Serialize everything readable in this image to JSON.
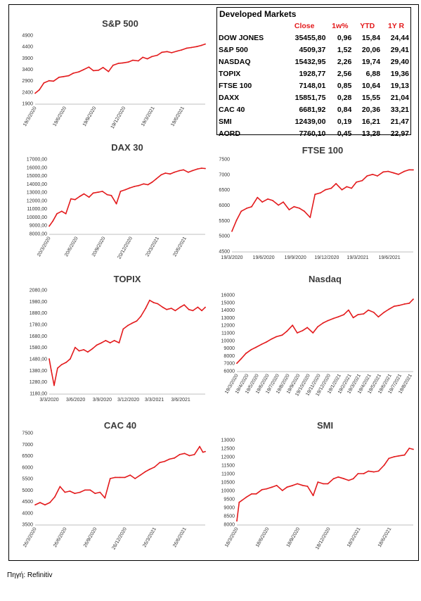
{
  "market_table": {
    "title": "Developed Markets",
    "headers": [
      "Close",
      "1w%",
      "YTD",
      "1Y R"
    ],
    "header_color": "#e31a1c",
    "rows": [
      {
        "name": "DOW JONES",
        "close": "35455,80",
        "w1": "0,96",
        "ytd": "15,84",
        "y1": "24,44"
      },
      {
        "name": "S&P 500",
        "close": "4509,37",
        "w1": "1,52",
        "ytd": "20,06",
        "y1": "29,41"
      },
      {
        "name": "NASDAQ",
        "close": "15432,95",
        "w1": "2,26",
        "ytd": "19,74",
        "y1": "29,40"
      },
      {
        "name": "TOPIX",
        "close": "1928,77",
        "w1": "2,56",
        "ytd": "6,88",
        "y1": "19,36"
      },
      {
        "name": "FTSE 100",
        "close": "7148,01",
        "w1": "0,85",
        "ytd": "10,64",
        "y1": "19,13"
      },
      {
        "name": "DAXX",
        "close": "15851,75",
        "w1": "0,28",
        "ytd": "15,55",
        "y1": "21,04"
      },
      {
        "name": "CAC 40",
        "close": "6681,92",
        "w1": "0,84",
        "ytd": "20,36",
        "y1": "33,21"
      },
      {
        "name": "SMI",
        "close": "12439,00",
        "w1": "0,19",
        "ytd": "16,21",
        "y1": "21,47"
      },
      {
        "name": "AORD",
        "close": "7760,10",
        "w1": "0,45",
        "ytd": "13,28",
        "y1": "22,97"
      }
    ]
  },
  "source_note": "Πηγή: Refinitiv",
  "line_color": "#e31a1c",
  "chart_data": [
    {
      "type": "line",
      "title": "S&P 500",
      "ylim": [
        1900,
        4900
      ],
      "yticks": [
        "1900",
        "2400",
        "2900",
        "3400",
        "3900",
        "4400",
        "4900"
      ],
      "xticks": [
        "19/3/2020",
        "19/6/2020",
        "19/9/2020",
        "19/12/2020",
        "19/3/2021",
        "19/6/2021"
      ],
      "x": [
        "19/3/2020",
        "1/4/2020",
        "15/4/2020",
        "1/5/2020",
        "15/5/2020",
        "1/6/2020",
        "15/6/2020",
        "1/7/2020",
        "15/7/2020",
        "1/8/2020",
        "15/8/2020",
        "1/9/2020",
        "15/9/2020",
        "1/10/2020",
        "15/10/2020",
        "1/11/2020",
        "15/11/2020",
        "1/12/2020",
        "15/12/2020",
        "1/1/2021",
        "15/1/2021",
        "1/2/2021",
        "15/2/2021",
        "1/3/2021",
        "15/3/2021",
        "1/4/2021",
        "15/4/2021",
        "1/5/2021",
        "15/5/2021",
        "1/6/2021",
        "15/6/2021",
        "1/7/2021",
        "15/7/2021",
        "1/8/2021",
        "15/8/2021",
        "27/8/2021"
      ],
      "values": [
        2350,
        2500,
        2800,
        2900,
        2880,
        3050,
        3080,
        3120,
        3230,
        3290,
        3380,
        3500,
        3340,
        3360,
        3480,
        3300,
        3580,
        3660,
        3680,
        3720,
        3800,
        3770,
        3930,
        3860,
        3960,
        4020,
        4150,
        4180,
        4130,
        4200,
        4250,
        4330,
        4360,
        4400,
        4450,
        4509
      ]
    },
    {
      "type": "line",
      "title": "DAX 30",
      "ylim": [
        8000,
        17000
      ],
      "yticks": [
        "8000,00",
        "9000,00",
        "10000,00",
        "11000,00",
        "12000,00",
        "13000,00",
        "14000,00",
        "15000,00",
        "16000,00",
        "17000,00"
      ],
      "xticks": [
        "20/3/2020",
        "20/6/2020",
        "20/9/2020",
        "20/12/2020",
        "20/3/2021",
        "20/6/2021"
      ],
      "x": [
        "20/3/2020",
        "1/4/2020",
        "15/4/2020",
        "1/5/2020",
        "15/5/2020",
        "1/6/2020",
        "15/6/2020",
        "1/7/2020",
        "15/7/2020",
        "1/8/2020",
        "15/8/2020",
        "1/9/2020",
        "15/9/2020",
        "1/10/2020",
        "15/10/2020",
        "1/11/2020",
        "15/11/2020",
        "1/12/2020",
        "15/12/2020",
        "1/1/2021",
        "15/1/2021",
        "1/2/2021",
        "15/2/2021",
        "1/3/2021",
        "15/3/2021",
        "1/4/2021",
        "15/4/2021",
        "1/5/2021",
        "15/5/2021",
        "1/6/2021",
        "15/6/2021",
        "1/7/2021",
        "15/7/2021",
        "1/8/2021",
        "15/8/2021",
        "27/8/2021"
      ],
      "values": [
        8900,
        9500,
        10400,
        10700,
        10400,
        12200,
        12100,
        12500,
        12800,
        12400,
        12900,
        13000,
        13100,
        12700,
        12600,
        11600,
        13100,
        13300,
        13500,
        13700,
        13800,
        14000,
        13900,
        14200,
        14600,
        15100,
        15300,
        15200,
        15400,
        15600,
        15700,
        15400,
        15600,
        15800,
        15900,
        15851
      ]
    },
    {
      "type": "line",
      "title": "FTSE 100",
      "ylim": [
        4500,
        7500
      ],
      "yticks": [
        "4500",
        "5000",
        "5500",
        "6000",
        "6500",
        "7000",
        "7500"
      ],
      "xticks": [
        "19/3/2020",
        "19/6/2020",
        "19/9/2020",
        "19/12/2020",
        "19/3/2021",
        "19/6/2021"
      ],
      "x": [
        "19/3/2020",
        "1/4/2020",
        "15/4/2020",
        "1/5/2020",
        "15/5/2020",
        "1/6/2020",
        "15/6/2020",
        "1/7/2020",
        "15/7/2020",
        "1/8/2020",
        "15/8/2020",
        "1/9/2020",
        "15/9/2020",
        "1/10/2020",
        "15/10/2020",
        "1/11/2020",
        "15/11/2020",
        "1/12/2020",
        "15/12/2020",
        "1/1/2021",
        "15/1/2021",
        "1/2/2021",
        "15/2/2021",
        "1/3/2021",
        "15/3/2021",
        "1/4/2021",
        "15/4/2021",
        "1/5/2021",
        "15/5/2021",
        "1/6/2021",
        "15/6/2021",
        "1/7/2021",
        "15/7/2021",
        "1/8/2021",
        "15/8/2021",
        "27/8/2021"
      ],
      "values": [
        5150,
        5500,
        5800,
        5900,
        5950,
        6250,
        6100,
        6200,
        6150,
        6000,
        6100,
        5850,
        5950,
        5900,
        5800,
        5600,
        6350,
        6400,
        6500,
        6550,
        6700,
        6500,
        6600,
        6550,
        6750,
        6800,
        6950,
        7000,
        6950,
        7080,
        7100,
        7050,
        7000,
        7100,
        7150,
        7148
      ]
    },
    {
      "type": "line",
      "title": "TOPIX",
      "ylim": [
        1180,
        2080
      ],
      "yticks": [
        "1180,00",
        "1280,00",
        "1380,00",
        "1480,00",
        "1580,00",
        "1680,00",
        "1780,00",
        "1880,00",
        "1980,00",
        "2080,00"
      ],
      "xticks": [
        "3/3/2020",
        "3/6/2020",
        "3/9/2020",
        "3/12/2020",
        "3/3/2021",
        "3/6/2021"
      ],
      "x": [
        "3/3/2020",
        "10/3/2020",
        "20/3/2020",
        "1/4/2020",
        "15/4/2020",
        "1/5/2020",
        "15/5/2020",
        "1/6/2020",
        "15/6/2020",
        "1/7/2020",
        "15/7/2020",
        "1/8/2020",
        "15/8/2020",
        "1/9/2020",
        "15/9/2020",
        "1/10/2020",
        "15/10/2020",
        "1/11/2020",
        "15/11/2020",
        "1/12/2020",
        "15/12/2020",
        "1/1/2021",
        "15/1/2021",
        "1/2/2021",
        "15/2/2021",
        "1/3/2021",
        "15/3/2021",
        "1/4/2021",
        "15/4/2021",
        "1/5/2021",
        "15/5/2021",
        "1/6/2021",
        "15/6/2021",
        "1/7/2021",
        "15/7/2021",
        "1/8/2021",
        "15/8/2021",
        "27/8/2021"
      ],
      "values": [
        1480,
        1380,
        1250,
        1400,
        1430,
        1450,
        1480,
        1580,
        1550,
        1560,
        1540,
        1570,
        1600,
        1620,
        1640,
        1620,
        1640,
        1620,
        1740,
        1770,
        1790,
        1810,
        1850,
        1920,
        1990,
        1970,
        1960,
        1930,
        1910,
        1920,
        1900,
        1930,
        1950,
        1910,
        1900,
        1930,
        1900,
        1929
      ]
    },
    {
      "type": "line",
      "title": "Nasdaq",
      "ylim": [
        6000,
        16000
      ],
      "yticks": [
        "6000",
        "7000",
        "8000",
        "9000",
        "10000",
        "11000",
        "12000",
        "13000",
        "14000",
        "15000",
        "16000"
      ],
      "xticks": [
        "19/3/2020",
        "19/4/2020",
        "19/5/2020",
        "19/6/2020",
        "19/7/2020",
        "19/8/2020",
        "19/9/2020",
        "19/10/2020",
        "19/11/2020",
        "19/12/2020",
        "19/1/2021",
        "19/2/2021",
        "19/3/2021",
        "19/4/2021",
        "19/5/2021",
        "19/6/2021",
        "19/7/2021",
        "19/8/2021"
      ],
      "x": [
        "19/3/2020",
        "1/4/2020",
        "15/4/2020",
        "1/5/2020",
        "15/5/2020",
        "1/6/2020",
        "15/6/2020",
        "1/7/2020",
        "15/7/2020",
        "1/8/2020",
        "15/8/2020",
        "1/9/2020",
        "15/9/2020",
        "1/10/2020",
        "15/10/2020",
        "1/11/2020",
        "15/11/2020",
        "1/12/2020",
        "15/12/2020",
        "1/1/2021",
        "15/1/2021",
        "1/2/2021",
        "15/2/2021",
        "1/3/2021",
        "15/3/2021",
        "1/4/2021",
        "15/4/2021",
        "1/5/2021",
        "15/5/2021",
        "1/6/2021",
        "15/6/2021",
        "1/7/2021",
        "15/7/2021",
        "1/8/2021",
        "15/8/2021",
        "27/8/2021"
      ],
      "values": [
        7000,
        7600,
        8300,
        8800,
        9100,
        9500,
        9800,
        10200,
        10500,
        10700,
        11200,
        12000,
        11000,
        11300,
        11700,
        11000,
        11800,
        12300,
        12600,
        12900,
        13100,
        13400,
        14000,
        13000,
        13400,
        13500,
        14000,
        13700,
        13100,
        13700,
        14100,
        14500,
        14600,
        14800,
        14900,
        15433
      ]
    },
    {
      "type": "line",
      "title": "CAC 40",
      "ylim": [
        3500,
        7500
      ],
      "yticks": [
        "3500",
        "4000",
        "4500",
        "5000",
        "5500",
        "6000",
        "6500",
        "7000",
        "7500"
      ],
      "xticks": [
        "26/3/2020",
        "26/6/2020",
        "26/9/2020",
        "26/12/2020",
        "26/3/2021",
        "26/6/2021"
      ],
      "x": [
        "26/3/2020",
        "10/4/2020",
        "25/4/2020",
        "10/5/2020",
        "25/5/2020",
        "10/6/2020",
        "25/6/2020",
        "10/7/2020",
        "25/7/2020",
        "10/8/2020",
        "25/8/2020",
        "10/9/2020",
        "25/9/2020",
        "10/10/2020",
        "25/10/2020",
        "10/11/2020",
        "25/11/2020",
        "10/12/2020",
        "25/12/2020",
        "10/1/2021",
        "25/1/2021",
        "10/2/2021",
        "25/2/2021",
        "10/3/2021",
        "25/3/2021",
        "10/4/2021",
        "25/4/2021",
        "10/5/2021",
        "25/5/2021",
        "10/6/2021",
        "25/6/2021",
        "10/7/2021",
        "25/7/2021",
        "10/8/2021",
        "20/8/2021",
        "27/8/2021"
      ],
      "values": [
        4350,
        4450,
        4350,
        4450,
        4700,
        5150,
        4900,
        4950,
        4850,
        4900,
        5000,
        5000,
        4850,
        4900,
        4650,
        5500,
        5550,
        5550,
        5550,
        5650,
        5500,
        5650,
        5800,
        5900,
        6000,
        6200,
        6250,
        6350,
        6400,
        6550,
        6600,
        6500,
        6550,
        6900,
        6650,
        6682
      ]
    },
    {
      "type": "line",
      "title": "SMI",
      "ylim": [
        8000,
        13000
      ],
      "yticks": [
        "8000",
        "8500",
        "9000",
        "9500",
        "10000",
        "10500",
        "11000",
        "11500",
        "12000",
        "12500",
        "13000"
      ],
      "xticks": [
        "18/3/2020",
        "18/6/2020",
        "18/9/2020",
        "18/12/2020",
        "18/3/2021",
        "18/6/2021"
      ],
      "x": [
        "18/3/2020",
        "25/3/2020",
        "1/4/2020",
        "15/4/2020",
        "1/5/2020",
        "15/5/2020",
        "1/6/2020",
        "15/6/2020",
        "1/7/2020",
        "15/7/2020",
        "1/8/2020",
        "15/8/2020",
        "1/9/2020",
        "15/9/2020",
        "1/10/2020",
        "15/10/2020",
        "1/11/2020",
        "15/11/2020",
        "1/12/2020",
        "15/12/2020",
        "1/1/2021",
        "15/1/2021",
        "1/2/2021",
        "15/2/2021",
        "1/3/2021",
        "15/3/2021",
        "1/4/2021",
        "15/4/2021",
        "1/5/2021",
        "15/5/2021",
        "1/6/2021",
        "15/6/2021",
        "1/7/2021",
        "15/7/2021",
        "1/8/2021",
        "15/8/2021",
        "27/8/2021"
      ],
      "values": [
        8200,
        9300,
        9400,
        9600,
        9800,
        9800,
        10050,
        10100,
        10200,
        10300,
        10000,
        10200,
        10300,
        10400,
        10300,
        10250,
        9700,
        10500,
        10400,
        10400,
        10700,
        10800,
        10700,
        10600,
        10700,
        11000,
        11000,
        11150,
        11100,
        11150,
        11500,
        11900,
        12000,
        12050,
        12100,
        12500,
        12439
      ]
    }
  ]
}
